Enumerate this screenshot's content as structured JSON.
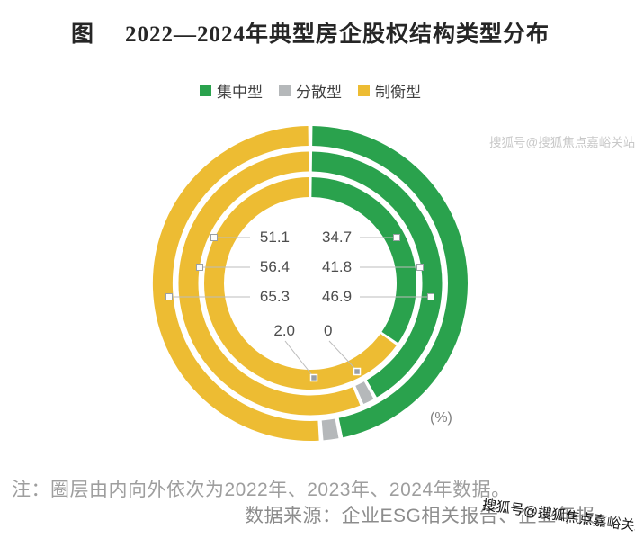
{
  "title": {
    "figure_label": "图",
    "text": "2022—2024年典型房企股权结构类型分布"
  },
  "legend": {
    "items": [
      {
        "label": "集中型",
        "color": "#2aa24d"
      },
      {
        "label": "分散型",
        "color": "#b5b8ba"
      },
      {
        "label": "制衡型",
        "color": "#edbc33"
      }
    ]
  },
  "chart_data": {
    "type": "donut",
    "title": "2022—2024年典型房企股权结构类型分布",
    "categories": [
      "集中型",
      "分散型",
      "制衡型"
    ],
    "colors": [
      "#2aa24d",
      "#b5b8ba",
      "#edbc33"
    ],
    "unit": "%",
    "start_angle": "top",
    "direction": "clockwise",
    "rings": [
      {
        "year": "2022",
        "position": "inner",
        "values": [
          34.7,
          0,
          65.3
        ]
      },
      {
        "year": "2023",
        "position": "middle",
        "values": [
          41.8,
          1.8,
          56.4
        ]
      },
      {
        "year": "2024",
        "position": "outer",
        "values": [
          46.9,
          2.0,
          51.1
        ]
      }
    ]
  },
  "center_labels": {
    "rows": [
      {
        "left": "51.1",
        "right": "34.7"
      },
      {
        "left": "56.4",
        "right": "41.8"
      },
      {
        "left": "65.3",
        "right": "46.9"
      },
      {
        "left": "2.0",
        "right": "0"
      }
    ]
  },
  "unit_label": "(%)",
  "notes": {
    "note": "注：圈层由内向外依次为2022年、2023年、2024年数据。",
    "source": "数据来源：企业ESG相关报告、企业年报。"
  },
  "watermarks": {
    "top": "搜狐号@搜狐焦点嘉峪关站",
    "bottom": "搜狐号@搜狐焦点嘉峪关站"
  }
}
